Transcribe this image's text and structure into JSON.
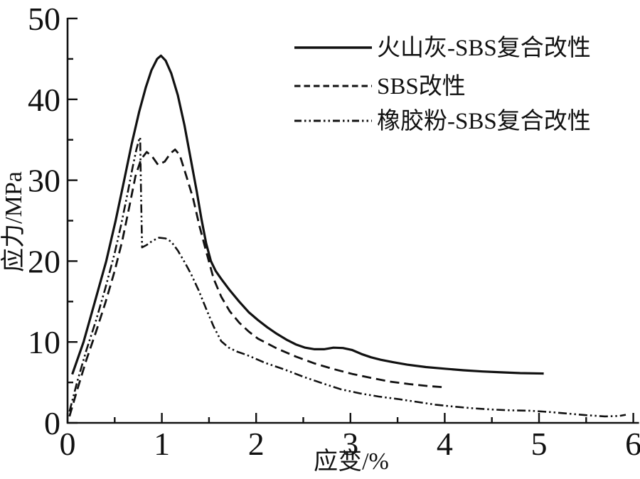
{
  "chart_data": {
    "type": "line",
    "title": "",
    "xlabel": "应变/%",
    "ylabel": "应力/MPa",
    "xlim": [
      0,
      6
    ],
    "ylim": [
      0,
      50
    ],
    "x_major_ticks": [
      0,
      1,
      2,
      3,
      4,
      5,
      6
    ],
    "x_minor_step": 0.5,
    "y_major_ticks": [
      0,
      10,
      20,
      30,
      40,
      50
    ],
    "y_minor_step": 5,
    "grid": false,
    "legend_position": "upper-right-inside",
    "axis_color": "#111111",
    "background_color": "#ffffff",
    "series": [
      {
        "id": "volcanic-ash-sbs",
        "name": "火山灰-SBS复合改性",
        "line_style": "solid",
        "color": "#111111",
        "points": [
          [
            0.05,
            6.0
          ],
          [
            0.17,
            10
          ],
          [
            0.29,
            15
          ],
          [
            0.41,
            20
          ],
          [
            0.51,
            25
          ],
          [
            0.6,
            30
          ],
          [
            0.68,
            34.5
          ],
          [
            0.76,
            38.5
          ],
          [
            0.83,
            41.5
          ],
          [
            0.89,
            43.6
          ],
          [
            0.95,
            45.0
          ],
          [
            0.99,
            45.4
          ],
          [
            1.04,
            44.8
          ],
          [
            1.1,
            43.2
          ],
          [
            1.17,
            40.5
          ],
          [
            1.24,
            36.8
          ],
          [
            1.31,
            32.4
          ],
          [
            1.37,
            28.6
          ],
          [
            1.42,
            25.2
          ],
          [
            1.47,
            22.2
          ],
          [
            1.52,
            20.0
          ],
          [
            1.57,
            18.8
          ],
          [
            1.63,
            17.8
          ],
          [
            1.72,
            16.4
          ],
          [
            1.82,
            15.0
          ],
          [
            1.92,
            13.7
          ],
          [
            2.02,
            12.7
          ],
          [
            2.12,
            11.8
          ],
          [
            2.22,
            11.0
          ],
          [
            2.32,
            10.3
          ],
          [
            2.42,
            9.7
          ],
          [
            2.52,
            9.3
          ],
          [
            2.62,
            9.1
          ],
          [
            2.72,
            9.1
          ],
          [
            2.82,
            9.3
          ],
          [
            2.92,
            9.25
          ],
          [
            3.02,
            9.0
          ],
          [
            3.12,
            8.5
          ],
          [
            3.22,
            8.1
          ],
          [
            3.32,
            7.8
          ],
          [
            3.45,
            7.5
          ],
          [
            3.6,
            7.2
          ],
          [
            3.8,
            6.9
          ],
          [
            4.0,
            6.7
          ],
          [
            4.2,
            6.5
          ],
          [
            4.4,
            6.35
          ],
          [
            4.6,
            6.25
          ],
          [
            4.8,
            6.15
          ],
          [
            5.05,
            6.1
          ]
        ]
      },
      {
        "id": "sbs",
        "name": "SBS改性",
        "line_style": "dashed",
        "color": "#111111",
        "points": [
          [
            0.02,
            0.8
          ],
          [
            0.1,
            4.0
          ],
          [
            0.2,
            7.8
          ],
          [
            0.3,
            11.2
          ],
          [
            0.4,
            14.8
          ],
          [
            0.5,
            18.8
          ],
          [
            0.58,
            22.5
          ],
          [
            0.66,
            27.0
          ],
          [
            0.72,
            30.5
          ],
          [
            0.78,
            32.6
          ],
          [
            0.84,
            33.5
          ],
          [
            0.9,
            32.9
          ],
          [
            0.96,
            31.9
          ],
          [
            1.03,
            32.3
          ],
          [
            1.09,
            33.3
          ],
          [
            1.14,
            33.8
          ],
          [
            1.19,
            33.1
          ],
          [
            1.26,
            30.5
          ],
          [
            1.33,
            27.8
          ],
          [
            1.4,
            24.3
          ],
          [
            1.47,
            21.2
          ],
          [
            1.55,
            17.8
          ],
          [
            1.63,
            15.6
          ],
          [
            1.72,
            13.8
          ],
          [
            1.82,
            12.4
          ],
          [
            1.92,
            11.3
          ],
          [
            2.02,
            10.4
          ],
          [
            2.22,
            9.2
          ],
          [
            2.42,
            8.2
          ],
          [
            2.62,
            7.35
          ],
          [
            2.82,
            6.65
          ],
          [
            3.02,
            6.05
          ],
          [
            3.22,
            5.55
          ],
          [
            3.42,
            5.1
          ],
          [
            3.62,
            4.8
          ],
          [
            3.82,
            4.55
          ],
          [
            4.0,
            4.4
          ]
        ]
      },
      {
        "id": "rubber-powder-sbs",
        "name": "橡胶粉-SBS复合改性",
        "line_style": "dash-dot-dot",
        "color": "#111111",
        "points": [
          [
            0.02,
            1.4
          ],
          [
            0.1,
            5.0
          ],
          [
            0.2,
            9.0
          ],
          [
            0.3,
            12.6
          ],
          [
            0.4,
            16.6
          ],
          [
            0.5,
            21.0
          ],
          [
            0.57,
            24.6
          ],
          [
            0.64,
            28.6
          ],
          [
            0.69,
            31.6
          ],
          [
            0.73,
            33.8
          ],
          [
            0.76,
            35.1
          ],
          [
            0.77,
            35.3
          ],
          [
            0.78,
            28.0
          ],
          [
            0.79,
            21.7
          ],
          [
            0.84,
            22.0
          ],
          [
            0.9,
            22.5
          ],
          [
            0.97,
            22.9
          ],
          [
            1.04,
            22.8
          ],
          [
            1.1,
            22.4
          ],
          [
            1.17,
            21.3
          ],
          [
            1.24,
            19.9
          ],
          [
            1.31,
            18.4
          ],
          [
            1.39,
            16.4
          ],
          [
            1.47,
            14.1
          ],
          [
            1.55,
            11.9
          ],
          [
            1.63,
            10.1
          ],
          [
            1.71,
            9.3
          ],
          [
            1.8,
            8.8
          ],
          [
            1.9,
            8.4
          ],
          [
            2.1,
            7.4
          ],
          [
            2.3,
            6.6
          ],
          [
            2.5,
            5.7
          ],
          [
            2.7,
            4.9
          ],
          [
            2.9,
            4.15
          ],
          [
            3.1,
            3.65
          ],
          [
            3.3,
            3.25
          ],
          [
            3.5,
            2.95
          ],
          [
            3.7,
            2.6
          ],
          [
            3.9,
            2.25
          ],
          [
            4.1,
            2.0
          ],
          [
            4.3,
            1.8
          ],
          [
            4.5,
            1.65
          ],
          [
            4.7,
            1.55
          ],
          [
            4.9,
            1.5
          ],
          [
            5.1,
            1.35
          ],
          [
            5.3,
            1.15
          ],
          [
            5.5,
            0.95
          ],
          [
            5.7,
            0.8
          ],
          [
            5.85,
            0.85
          ],
          [
            5.92,
            1.0
          ]
        ]
      }
    ]
  }
}
